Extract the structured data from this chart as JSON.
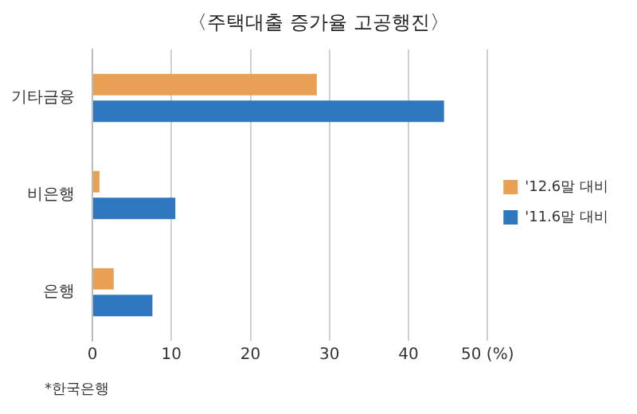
{
  "chart_data": {
    "type": "bar",
    "orientation": "horizontal",
    "title": "〈주택대출 증가율 고공행진〉",
    "categories": [
      "기타금융",
      "비은행",
      "은행"
    ],
    "series": [
      {
        "name": "'12.6말 대비",
        "color": "#e9a055",
        "values": [
          28.4,
          0.9,
          2.7
        ]
      },
      {
        "name": "'11.6말 대비",
        "color": "#2f78c0",
        "values": [
          44.5,
          10.5,
          7.6
        ]
      }
    ],
    "xlim": [
      0,
      50
    ],
    "xticks": [
      0,
      10,
      20,
      30,
      40,
      {
        "value": 50,
        "label": "50 (%)"
      }
    ],
    "grid": "x",
    "legend": "right",
    "annotations": [
      "*한국은행"
    ]
  }
}
